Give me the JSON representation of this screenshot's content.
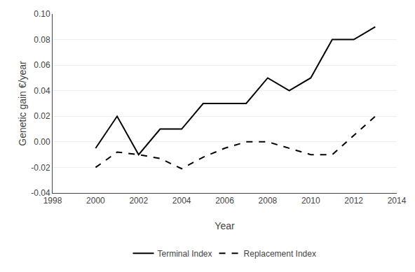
{
  "chart_data": {
    "type": "line",
    "x": [
      2000,
      2001,
      2002,
      2003,
      2004,
      2005,
      2006,
      2007,
      2008,
      2009,
      2010,
      2011,
      2012,
      2013
    ],
    "series": [
      {
        "name": "Terminal Index",
        "color": "#000000",
        "line_style": "solid",
        "values": [
          -0.005,
          0.02,
          -0.01,
          0.01,
          0.01,
          0.03,
          0.03,
          0.03,
          0.05,
          0.04,
          0.05,
          0.08,
          0.08,
          0.09
        ]
      },
      {
        "name": "Replacement Index",
        "color": "#000000",
        "line_style": "dashed",
        "values": [
          -0.02,
          -0.008,
          -0.01,
          -0.013,
          -0.021,
          -0.012,
          -0.005,
          0.0,
          0.0,
          -0.005,
          -0.01,
          -0.01,
          0.005,
          0.02
        ]
      }
    ],
    "xlabel": "Year",
    "ylabel": "Genetic gain €/year",
    "xlim": [
      1998,
      2014
    ],
    "ylim": [
      -0.04,
      0.1
    ],
    "xticks": [
      1998,
      2000,
      2002,
      2004,
      2006,
      2008,
      2010,
      2012,
      2014
    ],
    "yticks": [
      -0.04,
      -0.02,
      {
        "value": 0,
        "label": "0.00"
      },
      0.02,
      0.04,
      0.06,
      0.08,
      {
        "value": 0.1,
        "label": "0.10"
      }
    ],
    "grid": "y",
    "legend": "bottom"
  }
}
